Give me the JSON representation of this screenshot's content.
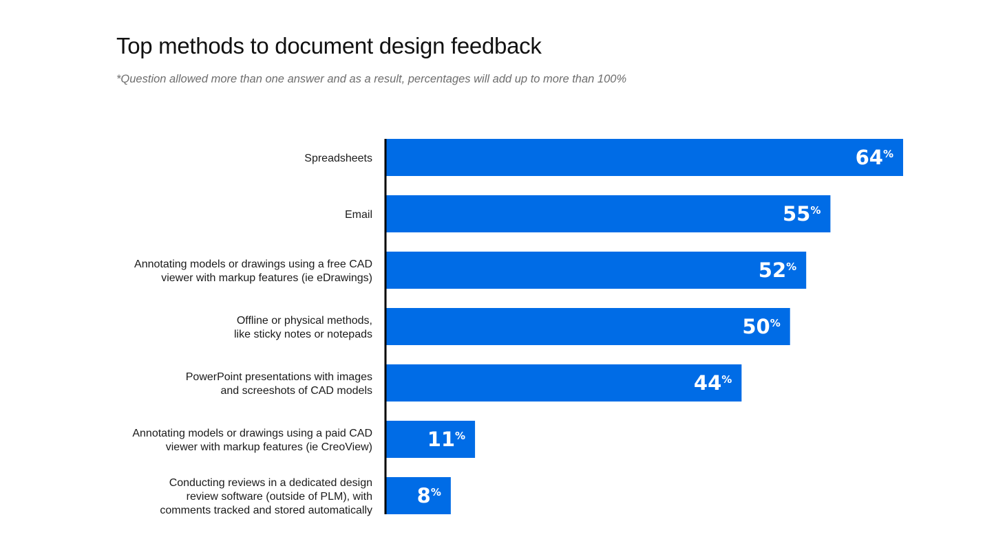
{
  "chart_data": {
    "type": "bar",
    "orientation": "horizontal",
    "title": "Top methods to document design feedback",
    "subtitle": "*Question allowed more than one answer and as a result, percentages will add up to more than 100%",
    "unit": "%",
    "bar_color": "#006ce6",
    "axis_color": "#000000",
    "xlim": [
      0,
      64
    ],
    "categories": [
      [
        "Spreadsheets"
      ],
      [
        "Email"
      ],
      [
        "Annotating models or drawings using a free CAD",
        "viewer with markup features (ie eDrawings)"
      ],
      [
        "Offline or physical methods,",
        "like sticky notes or notepads"
      ],
      [
        "PowerPoint presentations with images",
        "and screeshots of CAD models"
      ],
      [
        "Annotating models or drawings using a paid CAD",
        "viewer with markup features (ie CreoView)"
      ],
      [
        "Conducting reviews in a dedicated design",
        "review software (outside of PLM), with",
        "comments tracked and stored automatically"
      ]
    ],
    "values": [
      64,
      55,
      52,
      50,
      44,
      11,
      8
    ]
  }
}
